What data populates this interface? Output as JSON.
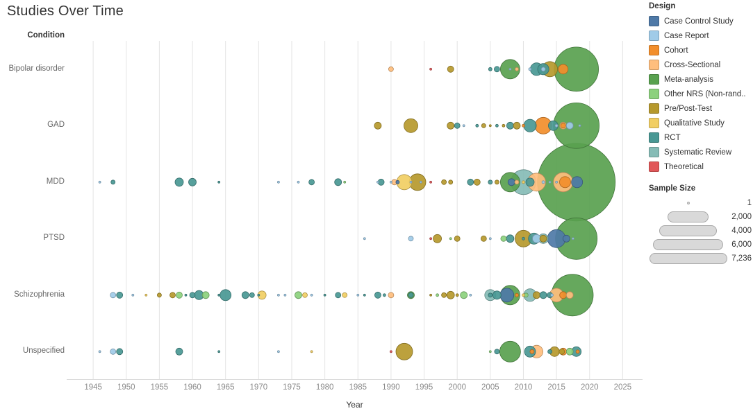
{
  "title": "Studies Over Time",
  "condition_label": "Condition",
  "legend": {
    "design_title": "Design",
    "designs": [
      {
        "code": "CC",
        "label": "Case Control Study",
        "color": "#4e79a7"
      },
      {
        "code": "CR",
        "label": "Case Report",
        "color": "#a0cbe8"
      },
      {
        "code": "CO",
        "label": "Cohort",
        "color": "#f28e2b"
      },
      {
        "code": "CS",
        "label": "Cross-Sectional",
        "color": "#ffbe7d"
      },
      {
        "code": "MA",
        "label": "Meta-analysis",
        "color": "#59a14f"
      },
      {
        "code": "NR",
        "label": "Other NRS (Non-rand..",
        "color": "#8cd17d"
      },
      {
        "code": "PP",
        "label": "Pre/Post-Test",
        "color": "#b6992d"
      },
      {
        "code": "QS",
        "label": "Qualitative Study",
        "color": "#f1ce63"
      },
      {
        "code": "RCT",
        "label": "RCT",
        "color": "#499894"
      },
      {
        "code": "SR",
        "label": "Systematic Review",
        "color": "#86bcb6"
      },
      {
        "code": "TH",
        "label": "Theoretical",
        "color": "#e15759"
      }
    ],
    "size_title": "Sample Size",
    "size_entries": [
      {
        "label": "1",
        "n": 1
      },
      {
        "label": "2,000",
        "n": 2000
      },
      {
        "label": "4,000",
        "n": 4000
      },
      {
        "label": "6,000",
        "n": 6000
      },
      {
        "label": "7,236",
        "n": 7236
      }
    ]
  },
  "chart_data": {
    "type": "scatter",
    "subtype": "bubble-timeline",
    "xlabel": "Year",
    "x_ticks": [
      1945,
      1950,
      1955,
      1960,
      1965,
      1970,
      1975,
      1980,
      1985,
      1990,
      1995,
      2000,
      2005,
      2010,
      2015,
      2020,
      2025
    ],
    "x_range": [
      1941,
      2028
    ],
    "grid": "vertical",
    "size_max_n": 7236,
    "size_max_r": 56,
    "conditions": [
      "Bipolar disorder",
      "GAD",
      "MDD",
      "PTSD",
      "Schizophrenia",
      "Unspecified"
    ],
    "point_format": [
      "year",
      "design_code",
      "sample_size"
    ],
    "points": {
      "Bipolar disorder": [
        [
          1990,
          "CS",
          28
        ],
        [
          1996,
          "TH",
          5
        ],
        [
          1999,
          "PP",
          47
        ],
        [
          2005,
          "RCT",
          15
        ],
        [
          2006,
          "RCT",
          37
        ],
        [
          2008,
          "MA",
          450
        ],
        [
          2008,
          "CR",
          5
        ],
        [
          2009,
          "CS",
          15
        ],
        [
          2011,
          "CR",
          9
        ],
        [
          2012,
          "RCT",
          190
        ],
        [
          2013,
          "RCT",
          150
        ],
        [
          2013,
          "CR",
          21
        ],
        [
          2014,
          "PP",
          280
        ],
        [
          2016,
          "CO",
          113
        ],
        [
          2018,
          "MA",
          2350
        ]
      ],
      "GAD": [
        [
          1988,
          "PP",
          58
        ],
        [
          1993,
          "PP",
          230
        ],
        [
          1999,
          "PP",
          58
        ],
        [
          2000,
          "RCT",
          37
        ],
        [
          2001,
          "CR",
          5
        ],
        [
          2003,
          "RCT",
          9
        ],
        [
          2004,
          "PP",
          21
        ],
        [
          2005,
          "PP",
          5
        ],
        [
          2006,
          "RCT",
          9
        ],
        [
          2007,
          "PP",
          9
        ],
        [
          2008,
          "RCT",
          58
        ],
        [
          2009,
          "PP",
          58
        ],
        [
          2010,
          "CO",
          9
        ],
        [
          2011,
          "RCT",
          190
        ],
        [
          2013,
          "CO",
          330
        ],
        [
          2014.5,
          "RCT",
          113
        ],
        [
          2015,
          "CR",
          9
        ],
        [
          2016,
          "CS",
          58
        ],
        [
          2016,
          "CO",
          28
        ],
        [
          2017,
          "CR",
          58
        ],
        [
          2018.5,
          "CR",
          5
        ],
        [
          2018,
          "MA",
          2500
        ]
      ],
      "MDD": [
        [
          1946,
          "CR",
          5
        ],
        [
          1948,
          "RCT",
          21
        ],
        [
          1958,
          "RCT",
          83
        ],
        [
          1960,
          "RCT",
          70
        ],
        [
          1964,
          "RCT",
          5
        ],
        [
          1973,
          "CR",
          5
        ],
        [
          1976,
          "CR",
          5
        ],
        [
          1978,
          "RCT",
          37
        ],
        [
          1982,
          "RCT",
          58
        ],
        [
          1983,
          "NR",
          5
        ],
        [
          1988,
          "CR",
          5
        ],
        [
          1988.5,
          "RCT",
          47
        ],
        [
          1990,
          "CR",
          5
        ],
        [
          1990.5,
          "CS",
          37
        ],
        [
          1991,
          "CC",
          15
        ],
        [
          1992,
          "QS",
          280
        ],
        [
          1993,
          "CR",
          5
        ],
        [
          1994,
          "PP",
          330
        ],
        [
          1994.5,
          "CR",
          5
        ],
        [
          1996,
          "TH",
          5
        ],
        [
          1998,
          "PP",
          28
        ],
        [
          1999,
          "PP",
          21
        ],
        [
          2002,
          "RCT",
          47
        ],
        [
          2003,
          "PP",
          47
        ],
        [
          2005,
          "RCT",
          21
        ],
        [
          2006,
          "PP",
          21
        ],
        [
          2008,
          "MA",
          450
        ],
        [
          2008.2,
          "CC",
          58
        ],
        [
          2009,
          "CS",
          21
        ],
        [
          2010,
          "SR",
          750
        ],
        [
          2010,
          "QS",
          9
        ],
        [
          2011,
          "RCT",
          83
        ],
        [
          2012,
          "CS",
          390
        ],
        [
          2013,
          "CR",
          9
        ],
        [
          2014,
          "CR",
          5
        ],
        [
          2015,
          "CR",
          5
        ],
        [
          2016,
          "CS",
          450
        ],
        [
          2016.3,
          "CO",
          148
        ],
        [
          2018,
          "MA",
          7236
        ],
        [
          2018.1,
          "CC",
          148
        ]
      ],
      "PTSD": [
        [
          1986,
          "CR",
          5
        ],
        [
          1993,
          "CR",
          28
        ],
        [
          1996,
          "TH",
          5
        ],
        [
          1997,
          "PP",
          83
        ],
        [
          1999,
          "NR",
          5
        ],
        [
          2000,
          "PP",
          37
        ],
        [
          2004,
          "PP",
          37
        ],
        [
          2005,
          "CR",
          5
        ],
        [
          2007,
          "NR",
          37
        ],
        [
          2008,
          "RCT",
          70
        ],
        [
          2010,
          "PP",
          330
        ],
        [
          2010,
          "RCT",
          9
        ],
        [
          2011.6,
          "RCT",
          148
        ],
        [
          2012,
          "CR",
          83
        ],
        [
          2013,
          "SR",
          113
        ],
        [
          2013,
          "PP",
          58
        ],
        [
          2015,
          "CC",
          390
        ],
        [
          2016.5,
          "CC",
          58
        ],
        [
          2017.5,
          "CR",
          5
        ],
        [
          2018,
          "MA",
          2080
        ]
      ],
      "Schizophrenia": [
        [
          1948,
          "CR",
          37
        ],
        [
          1949,
          "RCT",
          47
        ],
        [
          1951,
          "CR",
          5
        ],
        [
          1953,
          "QS",
          5
        ],
        [
          1955,
          "PP",
          21
        ],
        [
          1957,
          "PP",
          37
        ],
        [
          1958,
          "NR",
          47
        ],
        [
          1959,
          "RCT",
          5
        ],
        [
          1960,
          "RCT",
          37
        ],
        [
          1961,
          "RCT",
          100
        ],
        [
          1962,
          "NR",
          58
        ],
        [
          1964,
          "RCT",
          5
        ],
        [
          1965,
          "RCT",
          148
        ],
        [
          1968,
          "RCT",
          58
        ],
        [
          1969,
          "RCT",
          28
        ],
        [
          1970,
          "RCT",
          5
        ],
        [
          1970.5,
          "QS",
          83
        ],
        [
          1973,
          "CR",
          5
        ],
        [
          1974,
          "CR",
          5
        ],
        [
          1976,
          "NR",
          58
        ],
        [
          1977,
          "QS",
          28
        ],
        [
          1978,
          "CR",
          5
        ],
        [
          1980,
          "RCT",
          5
        ],
        [
          1982,
          "RCT",
          37
        ],
        [
          1983,
          "QS",
          28
        ],
        [
          1985,
          "CR",
          5
        ],
        [
          1986,
          "RCT",
          5
        ],
        [
          1988,
          "RCT",
          47
        ],
        [
          1989,
          "RCT",
          9
        ],
        [
          1990,
          "CS",
          37
        ],
        [
          1993,
          "MA",
          58
        ],
        [
          1993,
          "RCT",
          28
        ],
        [
          1996,
          "PP",
          5
        ],
        [
          1997,
          "NR",
          9
        ],
        [
          1998,
          "PP",
          28
        ],
        [
          1999,
          "PP",
          70
        ],
        [
          2000,
          "PP",
          9
        ],
        [
          2001,
          "NR",
          58
        ],
        [
          2002,
          "CR",
          5
        ],
        [
          2005,
          "SR",
          148
        ],
        [
          2005,
          "RCT",
          21
        ],
        [
          2006,
          "RCT",
          83
        ],
        [
          2007.5,
          "CC",
          230
        ],
        [
          2008,
          "MA",
          450
        ],
        [
          2009,
          "CO",
          15
        ],
        [
          2010,
          "QS",
          9
        ],
        [
          2010.4,
          "NR",
          21
        ],
        [
          2011,
          "SR",
          190
        ],
        [
          2012,
          "PP",
          58
        ],
        [
          2013,
          "RCT",
          58
        ],
        [
          2014,
          "RCT",
          37
        ],
        [
          2014.3,
          "CR",
          9
        ],
        [
          2015,
          "CS",
          230
        ],
        [
          2016,
          "CO",
          58
        ],
        [
          2017,
          "CS",
          58
        ],
        [
          2017.4,
          "MA",
          2080
        ]
      ],
      "Unspecified": [
        [
          1946,
          "CR",
          5
        ],
        [
          1948,
          "CR",
          37
        ],
        [
          1949,
          "RCT",
          47
        ],
        [
          1958,
          "RCT",
          58
        ],
        [
          1964,
          "RCT",
          5
        ],
        [
          1973,
          "CR",
          5
        ],
        [
          1978,
          "QS",
          5
        ],
        [
          1990,
          "TH",
          5
        ],
        [
          1992,
          "PP",
          330
        ],
        [
          2005,
          "NR",
          5
        ],
        [
          2006,
          "RCT",
          28
        ],
        [
          2008,
          "MA",
          520
        ],
        [
          2011,
          "RCT",
          148
        ],
        [
          2011.3,
          "CO",
          21
        ],
        [
          2012,
          "CS",
          190
        ],
        [
          2014,
          "RCT",
          21
        ],
        [
          2014.7,
          "PP",
          113
        ],
        [
          2015.8,
          "PP",
          37
        ],
        [
          2016,
          "CO",
          58
        ],
        [
          2017,
          "NR",
          58
        ],
        [
          2018,
          "RCT",
          113
        ],
        [
          2018.2,
          "CO",
          15
        ]
      ]
    }
  }
}
